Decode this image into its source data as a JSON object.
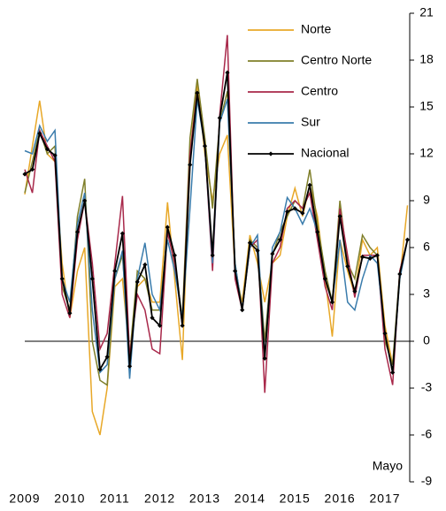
{
  "chart_data": {
    "type": "line",
    "annotation": "Mayo",
    "x": [
      2009,
      2009.17,
      2009.33,
      2009.5,
      2009.67,
      2009.83,
      2010,
      2010.17,
      2010.33,
      2010.5,
      2010.67,
      2010.83,
      2011,
      2011.17,
      2011.33,
      2011.5,
      2011.67,
      2011.83,
      2012,
      2012.17,
      2012.33,
      2012.5,
      2012.67,
      2012.83,
      2013,
      2013.17,
      2013.33,
      2013.5,
      2013.67,
      2013.83,
      2014,
      2014.17,
      2014.33,
      2014.5,
      2014.67,
      2014.83,
      2015,
      2015.17,
      2015.33,
      2015.5,
      2015.67,
      2015.83,
      2016,
      2016.17,
      2016.33,
      2016.5,
      2016.67,
      2016.83,
      2017,
      2017.17,
      2017.33,
      2017.5
    ],
    "series": [
      {
        "name": "Norte",
        "color": "#e8a828",
        "values": [
          9.4,
          12.5,
          15.4,
          12.0,
          11.5,
          5.0,
          1.5,
          4.5,
          6.0,
          -4.5,
          -6.0,
          -3.0,
          3.5,
          4.0,
          -1.0,
          3.5,
          4.0,
          2.5,
          2.5,
          8.9,
          4.0,
          -1.2,
          12.0,
          16.5,
          12.0,
          9.0,
          12.0,
          13.2,
          4.5,
          2.5,
          6.8,
          5.0,
          2.5,
          5.0,
          5.5,
          8.0,
          9.8,
          8.0,
          10.0,
          8.0,
          4.0,
          0.3,
          6.5,
          4.5,
          3.0,
          6.5,
          5.5,
          6.0,
          1.0,
          -1.5,
          4.0,
          8.7
        ]
      },
      {
        "name": "Centro Norte",
        "color": "#7f7f2a",
        "values": [
          9.5,
          11.5,
          13.5,
          12.0,
          12.5,
          3.5,
          2.0,
          8.0,
          10.4,
          0.0,
          -2.5,
          -2.8,
          4.0,
          5.5,
          -1.0,
          4.5,
          4.0,
          2.0,
          2.0,
          7.0,
          5.0,
          1.5,
          13.0,
          16.8,
          13.0,
          8.5,
          14.0,
          16.0,
          5.0,
          2.0,
          6.5,
          6.0,
          0.0,
          5.5,
          7.0,
          8.0,
          9.0,
          8.5,
          11.0,
          7.5,
          4.5,
          2.5,
          9.0,
          5.0,
          4.0,
          6.8,
          6.0,
          5.5,
          0.0,
          -1.5,
          4.5,
          6.5
        ]
      },
      {
        "name": "Centro",
        "color": "#a8284a",
        "values": [
          11.0,
          9.5,
          13.5,
          12.5,
          11.5,
          3.0,
          1.5,
          6.5,
          9.0,
          5.0,
          -0.5,
          0.5,
          5.0,
          9.3,
          -1.0,
          3.0,
          2.0,
          -0.5,
          -0.8,
          7.0,
          5.0,
          1.0,
          12.0,
          16.0,
          12.5,
          4.5,
          14.5,
          19.6,
          4.0,
          2.0,
          6.0,
          6.5,
          -3.3,
          5.0,
          6.0,
          8.5,
          9.0,
          8.5,
          9.5,
          6.5,
          3.5,
          2.0,
          8.5,
          5.5,
          2.8,
          5.5,
          5.5,
          5.5,
          -0.5,
          -2.8,
          4.5,
          6.5
        ]
      },
      {
        "name": "Sur",
        "color": "#3a7cac",
        "values": [
          12.2,
          12.0,
          13.8,
          12.8,
          13.5,
          4.0,
          2.5,
          7.5,
          9.5,
          2.0,
          -2.0,
          -1.5,
          4.0,
          5.8,
          -2.4,
          4.0,
          6.3,
          3.0,
          2.0,
          6.5,
          4.5,
          1.5,
          8.5,
          15.5,
          12.5,
          5.0,
          14.0,
          15.5,
          5.0,
          2.0,
          6.0,
          6.8,
          -1.0,
          6.0,
          7.0,
          9.2,
          8.5,
          7.5,
          8.5,
          7.0,
          4.0,
          2.5,
          6.5,
          2.5,
          2.0,
          4.0,
          5.5,
          5.0,
          0.5,
          -2.0,
          4.0,
          6.5
        ]
      },
      {
        "name": "Nacional",
        "color": "#000000",
        "markers": true,
        "values": [
          10.7,
          11.0,
          13.3,
          12.3,
          11.9,
          4.0,
          1.8,
          7.0,
          9.0,
          4.0,
          -1.8,
          -1.0,
          4.5,
          6.9,
          -1.6,
          3.8,
          4.9,
          1.5,
          1.0,
          7.3,
          5.5,
          1.0,
          11.3,
          15.9,
          12.5,
          5.5,
          14.3,
          17.2,
          4.5,
          2.0,
          6.3,
          5.8,
          -1.1,
          5.6,
          6.5,
          8.3,
          8.5,
          8.2,
          10.0,
          7.0,
          4.0,
          2.5,
          8.0,
          4.8,
          3.2,
          5.4,
          5.3,
          5.5,
          0.5,
          -2.0,
          4.3,
          6.5
        ]
      }
    ],
    "xlim": [
      2009,
      2017.55
    ],
    "xticks": [
      2009,
      2010,
      2011,
      2012,
      2013,
      2014,
      2015,
      2016,
      2017
    ],
    "ylim": [
      -9,
      21
    ],
    "yticks": [
      -9,
      -6,
      -3,
      0,
      3,
      6,
      9,
      12,
      15,
      18,
      21
    ]
  }
}
